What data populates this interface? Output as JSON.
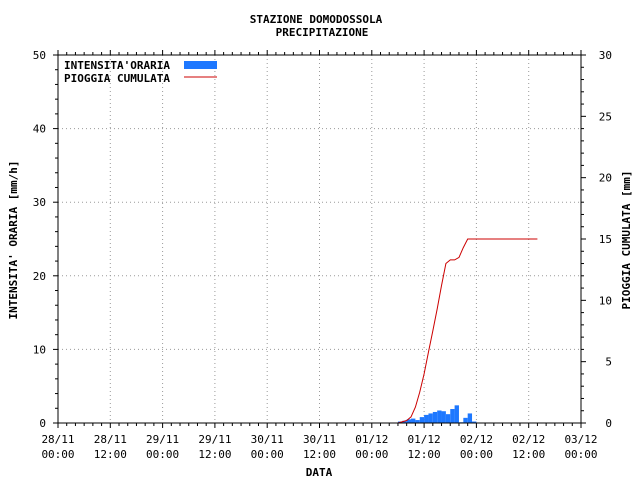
{
  "chart_data": {
    "type": "bar+line",
    "title": "STAZIONE DOMODOSSOLA",
    "subtitle": "PRECIPITAZIONE",
    "xlabel": "DATA",
    "ylabel_left": "INTENSITA' ORARIA [mm/h]",
    "ylabel_right": "PIOGGIA CUMULATA [mm]",
    "ylim_left": [
      0,
      50
    ],
    "ylim_right": [
      0,
      30
    ],
    "y_ticks_left": [
      "0",
      "10",
      "20",
      "30",
      "40",
      "50"
    ],
    "y_ticks_right": [
      "0",
      "5",
      "10",
      "15",
      "20",
      "25",
      "30"
    ],
    "x_ticks": [
      {
        "date": "28/11",
        "time": "00:00"
      },
      {
        "date": "28/11",
        "time": "12:00"
      },
      {
        "date": "29/11",
        "time": "00:00"
      },
      {
        "date": "29/11",
        "time": "12:00"
      },
      {
        "date": "30/11",
        "time": "00:00"
      },
      {
        "date": "30/11",
        "time": "12:00"
      },
      {
        "date": "01/12",
        "time": "00:00"
      },
      {
        "date": "01/12",
        "time": "12:00"
      },
      {
        "date": "02/12",
        "time": "00:00"
      },
      {
        "date": "02/12",
        "time": "12:00"
      },
      {
        "date": "03/12",
        "time": "00:00"
      }
    ],
    "grid": true,
    "legend_position": "top-left",
    "series": [
      {
        "name": "INTENSITA'ORARIA",
        "type": "bar",
        "axis": "left",
        "color": "#1e78ff",
        "x": [
          "01/12 06:00",
          "01/12 07:00",
          "01/12 08:00",
          "01/12 09:00",
          "01/12 10:00",
          "01/12 11:00",
          "01/12 12:00",
          "01/12 13:00",
          "01/12 14:00",
          "01/12 15:00",
          "01/12 16:00",
          "01/12 17:00",
          "01/12 18:00",
          "01/12 19:00",
          "01/12 20:00",
          "01/12 21:00",
          "01/12 22:00",
          "01/12 23:00"
        ],
        "values": [
          0.2,
          0.3,
          0.5,
          0.6,
          0.4,
          0.8,
          1.1,
          1.3,
          1.5,
          1.7,
          1.6,
          1.2,
          1.9,
          2.4,
          0.1,
          0.7,
          1.3,
          0.2
        ]
      },
      {
        "name": "PIOGGIA CUMULATA",
        "type": "line",
        "axis": "right",
        "color": "#cc0000",
        "x": [
          "01/12 06:00",
          "01/12 08:00",
          "01/12 09:00",
          "01/12 10:00",
          "01/12 11:00",
          "01/12 12:00",
          "01/12 13:00",
          "01/12 14:00",
          "01/12 15:00",
          "01/12 16:00",
          "01/12 17:00",
          "01/12 18:00",
          "01/12 19:00",
          "01/12 20:00",
          "01/12 21:00",
          "01/12 22:00",
          "01/12 23:00",
          "02/12 00:00",
          "02/12 12:00",
          "02/12 14:00"
        ],
        "values": [
          0.0,
          0.2,
          0.5,
          1.3,
          2.5,
          4.0,
          5.8,
          7.5,
          9.3,
          11.2,
          13.0,
          13.3,
          13.3,
          13.5,
          14.3,
          15.0,
          15.0,
          15.0,
          15.0,
          15.0
        ]
      }
    ]
  }
}
